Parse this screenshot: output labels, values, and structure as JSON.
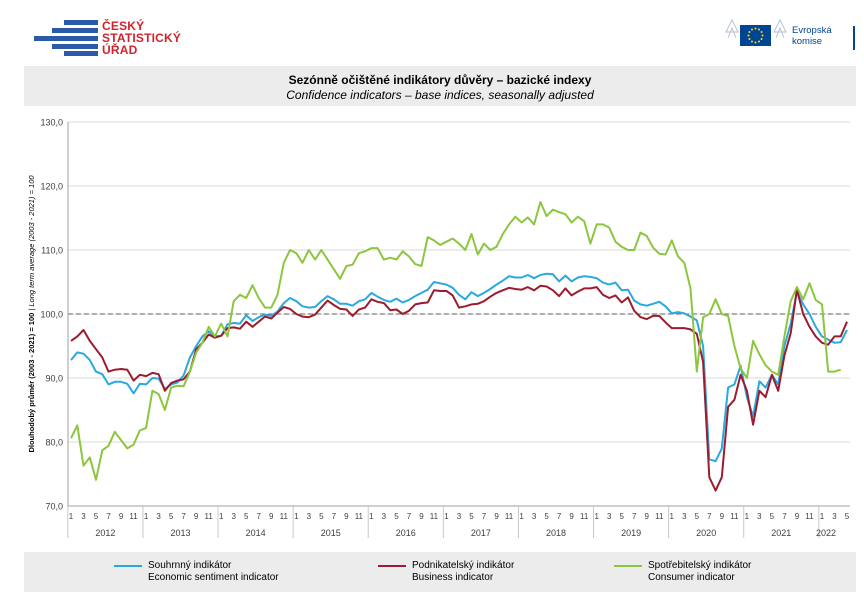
{
  "header": {
    "csu_logo": {
      "line1": "ČESKÝ",
      "line2": "STATISTICKÝ",
      "line3": "ÚŘAD",
      "icon": "csu-bars-logo"
    },
    "eu_logo": {
      "line1": "Evropská",
      "line2": "komise",
      "icon": "eu-flag-logo"
    }
  },
  "title": {
    "cz": "Sezónně očištěné indikátory důvěry – bazické indexy",
    "en": "Confidence indicators – base indices, seasonally adjusted"
  },
  "legend": [
    {
      "cz": "Souhrnný indikátor",
      "en": "Economic sentiment indicator",
      "color": "#29a9e0"
    },
    {
      "cz": "Podnikatelský indikátor",
      "en": "Business indicator",
      "color": "#9b1c2e"
    },
    {
      "cz": "Spotřebitelský indikátor",
      "en": "Consumer indicator",
      "color": "#8cc63f"
    }
  ],
  "chart_data": {
    "type": "line",
    "title": "Sezónně očištěné indikátory důvěry – bazické indexy",
    "ylabel_cz": "Dlouhodobý průměr (2003 - 2021) = 100",
    "ylabel_en": "Long term average (2003 - 2021) = 100",
    "ylim": [
      70,
      130
    ],
    "yticks": [
      "130,0",
      "120,0",
      "110,0",
      "100,0",
      "90,0",
      "80,0",
      "70,0"
    ],
    "reference_line": 100,
    "x_start": "2012-01",
    "x_end": "2022-01",
    "month_tick_labels": [
      "1",
      "3",
      "5",
      "7",
      "9",
      "11"
    ],
    "year_labels": [
      "2012",
      "2013",
      "2014",
      "2015",
      "2016",
      "2017",
      "2018",
      "2019",
      "2020",
      "2021",
      "2022"
    ],
    "grid": "horizontal",
    "series": [
      {
        "name": "Souhrnný indikátor",
        "color": "#29a9e0",
        "values": [
          92.8,
          94.0,
          93.8,
          92.8,
          91.0,
          90.6,
          89.0,
          89.4,
          89.4,
          89.1,
          87.6,
          89.1,
          89.0,
          90.0,
          89.9,
          88.3,
          89.0,
          89.3,
          90.4,
          93.2,
          95.0,
          96.5,
          97.3,
          96.5,
          96.6,
          98.4,
          98.6,
          98.5,
          99.8,
          98.9,
          99.5,
          99.9,
          99.7,
          100.4,
          101.7,
          102.5,
          102.0,
          101.2,
          101.0,
          101.1,
          102.0,
          102.8,
          102.3,
          101.6,
          101.6,
          101.3,
          102.0,
          102.3,
          103.3,
          102.7,
          102.2,
          101.9,
          102.4,
          101.8,
          102.2,
          102.8,
          103.3,
          103.8,
          105.0,
          104.8,
          104.6,
          104.1,
          103.0,
          102.3,
          103.4,
          102.8,
          103.3,
          103.9,
          104.6,
          105.2,
          105.9,
          105.7,
          105.7,
          106.1,
          105.6,
          106.1,
          106.3,
          106.2,
          105.1,
          106.0,
          105.1,
          105.7,
          105.9,
          105.8,
          105.6,
          104.9,
          104.6,
          104.9,
          103.7,
          103.8,
          102.1,
          101.5,
          101.3,
          101.6,
          101.9,
          101.2,
          100.1,
          100.3,
          100.1,
          99.6,
          99.0,
          95.0,
          77.3,
          77.0,
          79.0,
          88.5,
          89.0,
          91.9,
          87.0,
          84.0,
          89.5,
          88.5,
          90.5,
          89.0,
          95.0,
          98.5,
          103.5,
          101.5,
          100.0,
          98.0,
          96.5,
          96.0,
          95.5,
          95.6,
          97.5
        ]
      },
      {
        "name": "Podnikatelský indikátor",
        "color": "#9b1c2e",
        "values": [
          95.8,
          96.5,
          97.5,
          95.8,
          94.5,
          93.2,
          91.0,
          91.3,
          91.4,
          91.3,
          89.6,
          90.5,
          90.3,
          90.8,
          90.6,
          88.0,
          89.2,
          89.6,
          89.8,
          91.0,
          94.5,
          95.5,
          96.8,
          96.3,
          96.6,
          97.8,
          97.9,
          97.7,
          98.8,
          98.0,
          98.8,
          99.6,
          99.3,
          100.2,
          101.1,
          100.8,
          100.0,
          99.6,
          99.5,
          99.9,
          101.0,
          102.1,
          101.4,
          100.8,
          100.7,
          99.7,
          100.7,
          101.0,
          102.3,
          101.9,
          101.7,
          100.6,
          100.7,
          100.0,
          100.5,
          101.5,
          101.7,
          101.8,
          103.7,
          103.6,
          103.6,
          102.9,
          101.0,
          101.2,
          101.5,
          101.6,
          102.0,
          102.7,
          103.3,
          103.7,
          104.1,
          103.9,
          103.8,
          104.2,
          103.7,
          104.4,
          104.3,
          103.7,
          102.8,
          104.0,
          102.9,
          103.5,
          104.0,
          104.0,
          104.2,
          103.0,
          102.5,
          102.9,
          101.8,
          102.6,
          100.5,
          99.5,
          99.2,
          99.7,
          99.7,
          98.7,
          97.8,
          97.8,
          97.8,
          97.6,
          96.9,
          92.5,
          74.5,
          72.4,
          74.5,
          85.5,
          86.6,
          90.5,
          88.0,
          82.7,
          88.0,
          87.0,
          90.5,
          88.0,
          93.5,
          97.0,
          103.8,
          100.0,
          98.0,
          96.5,
          95.5,
          95.2,
          96.5,
          96.5,
          98.8
        ]
      },
      {
        "name": "Spotřebitelský indikátor",
        "color": "#8cc63f",
        "values": [
          80.6,
          82.6,
          76.3,
          77.6,
          74.1,
          78.7,
          79.4,
          81.6,
          80.3,
          79.0,
          79.6,
          81.8,
          82.2,
          88.0,
          87.5,
          85.0,
          88.5,
          88.8,
          88.7,
          91.0,
          94.0,
          95.5,
          98.0,
          96.5,
          98.5,
          96.5,
          102.0,
          103.0,
          102.5,
          104.5,
          102.5,
          101.0,
          101.0,
          103.0,
          108.0,
          110.0,
          109.5,
          108.0,
          110.0,
          108.5,
          110.0,
          108.5,
          107.0,
          105.5,
          107.5,
          107.7,
          109.5,
          109.8,
          110.3,
          110.3,
          108.5,
          108.8,
          108.5,
          109.8,
          109.0,
          107.8,
          107.5,
          112.0,
          111.5,
          110.8,
          111.3,
          111.8,
          111.0,
          110.0,
          112.5,
          109.3,
          111.0,
          110.0,
          110.5,
          112.5,
          114.0,
          115.2,
          114.3,
          115.1,
          114.0,
          117.5,
          115.3,
          116.3,
          115.9,
          115.6,
          114.3,
          115.2,
          114.5,
          111.0,
          114.0,
          114.0,
          113.5,
          111.3,
          110.5,
          110.0,
          110.0,
          112.7,
          112.2,
          110.4,
          109.4,
          109.3,
          111.5,
          109.0,
          108.0,
          104.0,
          91.0,
          99.5,
          100.0,
          102.3,
          100.0,
          99.7,
          95.0,
          91.5,
          90.0,
          95.8,
          93.7,
          92.0,
          91.0,
          90.5,
          96.5,
          102.0,
          104.2,
          102.3,
          104.8,
          102.2,
          101.5,
          91.0,
          91.0,
          91.3
        ]
      }
    ]
  }
}
